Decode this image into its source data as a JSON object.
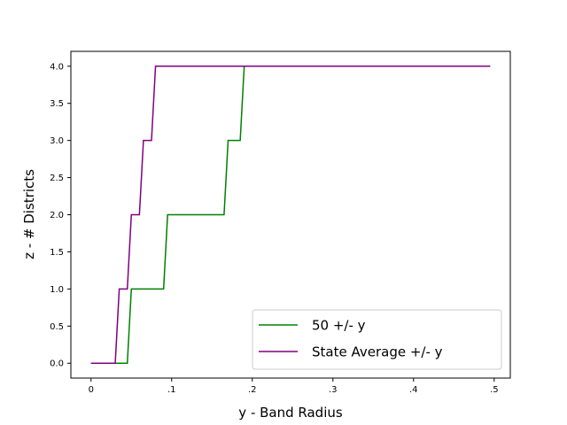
{
  "chart_data": {
    "type": "line",
    "xlabel": "y - Band Radius",
    "ylabel": "z - # Districts",
    "xlim": [
      -0.025,
      0.52
    ],
    "ylim": [
      -0.2,
      4.2
    ],
    "x_ticks": [
      0,
      0.1,
      0.2,
      0.3,
      0.4,
      0.5
    ],
    "x_tick_labels": [
      "0",
      ".1",
      ".2",
      ".3",
      ".4",
      ".5"
    ],
    "y_ticks": [
      0,
      0.5,
      1,
      1.5,
      2,
      2.5,
      3,
      3.5,
      4
    ],
    "y_tick_labels": [
      "0.0",
      "0.5",
      "1.0",
      "1.5",
      "2.0",
      "2.5",
      "3.0",
      "3.5",
      "4.0"
    ],
    "grid": false,
    "legend_position": "lower-right",
    "series": [
      {
        "name": "50 +/- y",
        "color": "#008000",
        "x": [
          0,
          0.045,
          0.05,
          0.09,
          0.095,
          0.165,
          0.17,
          0.185,
          0.19,
          0.495
        ],
        "y": [
          0,
          0,
          1,
          1,
          2,
          2,
          3,
          3,
          4,
          4
        ]
      },
      {
        "name": "State Average +/- y",
        "color": "#800080",
        "x": [
          0,
          0.03,
          0.035,
          0.045,
          0.05,
          0.06,
          0.065,
          0.075,
          0.08,
          0.495
        ],
        "y": [
          0,
          0,
          1,
          1,
          2,
          2,
          3,
          3,
          4,
          4
        ]
      }
    ]
  }
}
